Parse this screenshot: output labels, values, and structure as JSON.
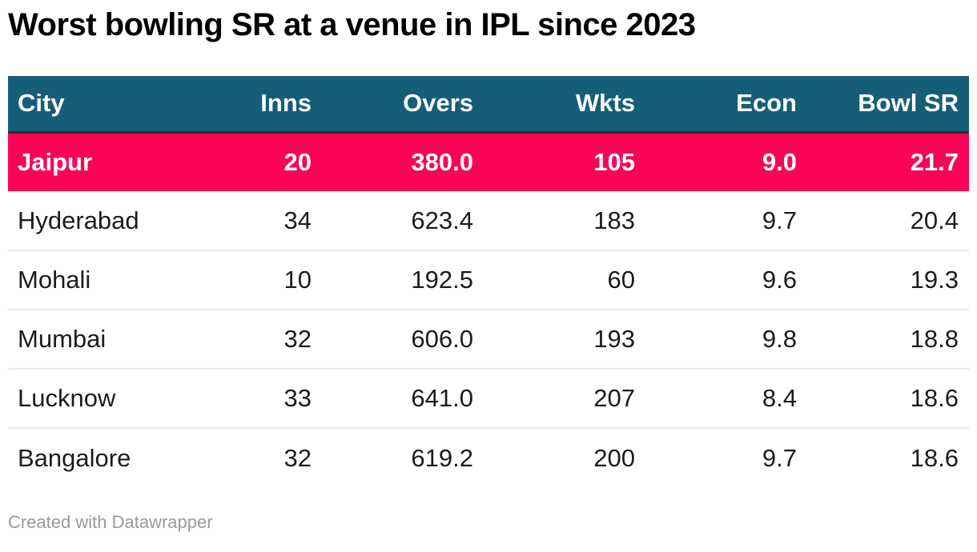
{
  "title": "Worst bowling SR at a venue in IPL since 2023",
  "chart_data": {
    "type": "table",
    "title": "Worst bowling SR at a venue in IPL since 2023",
    "columns": [
      "City",
      "Inns",
      "Overs",
      "Wkts",
      "Econ",
      "Bowl SR"
    ],
    "fields": [
      "city",
      "inns",
      "overs",
      "wkts",
      "econ",
      "bowl_sr"
    ],
    "rows": [
      {
        "city": "Jaipur",
        "inns": "20",
        "overs": "380.0",
        "wkts": "105",
        "econ": "9.0",
        "bowl_sr": "21.7",
        "highlighted": true
      },
      {
        "city": "Hyderabad",
        "inns": "34",
        "overs": "623.4",
        "wkts": "183",
        "econ": "9.7",
        "bowl_sr": "20.4",
        "highlighted": false
      },
      {
        "city": "Mohali",
        "inns": "10",
        "overs": "192.5",
        "wkts": "60",
        "econ": "9.6",
        "bowl_sr": "19.3",
        "highlighted": false
      },
      {
        "city": "Mumbai",
        "inns": "32",
        "overs": "606.0",
        "wkts": "193",
        "econ": "9.8",
        "bowl_sr": "18.8",
        "highlighted": false
      },
      {
        "city": "Lucknow",
        "inns": "33",
        "overs": "641.0",
        "wkts": "207",
        "econ": "8.4",
        "bowl_sr": "18.6",
        "highlighted": false
      },
      {
        "city": "Bangalore",
        "inns": "32",
        "overs": "619.2",
        "wkts": "200",
        "econ": "9.7",
        "bowl_sr": "18.6",
        "highlighted": false
      }
    ],
    "highlighted_row": "Jaipur",
    "layout_hints": {
      "numeric_columns_right_aligned": true,
      "header_background": "#165e77",
      "highlight_background": "#fb0357"
    }
  },
  "colors": {
    "header_bg": "#165e77",
    "header_text": "#ffffff",
    "highlight_bg": "#fb0357",
    "highlight_text": "#ffffff",
    "body_text": "#1c1c1c",
    "row_separator": "#e8e8e8",
    "header_border": "#2b2b2b",
    "footer_text": "#9a9a9a"
  },
  "footer": {
    "credit": "Created with Datawrapper"
  }
}
